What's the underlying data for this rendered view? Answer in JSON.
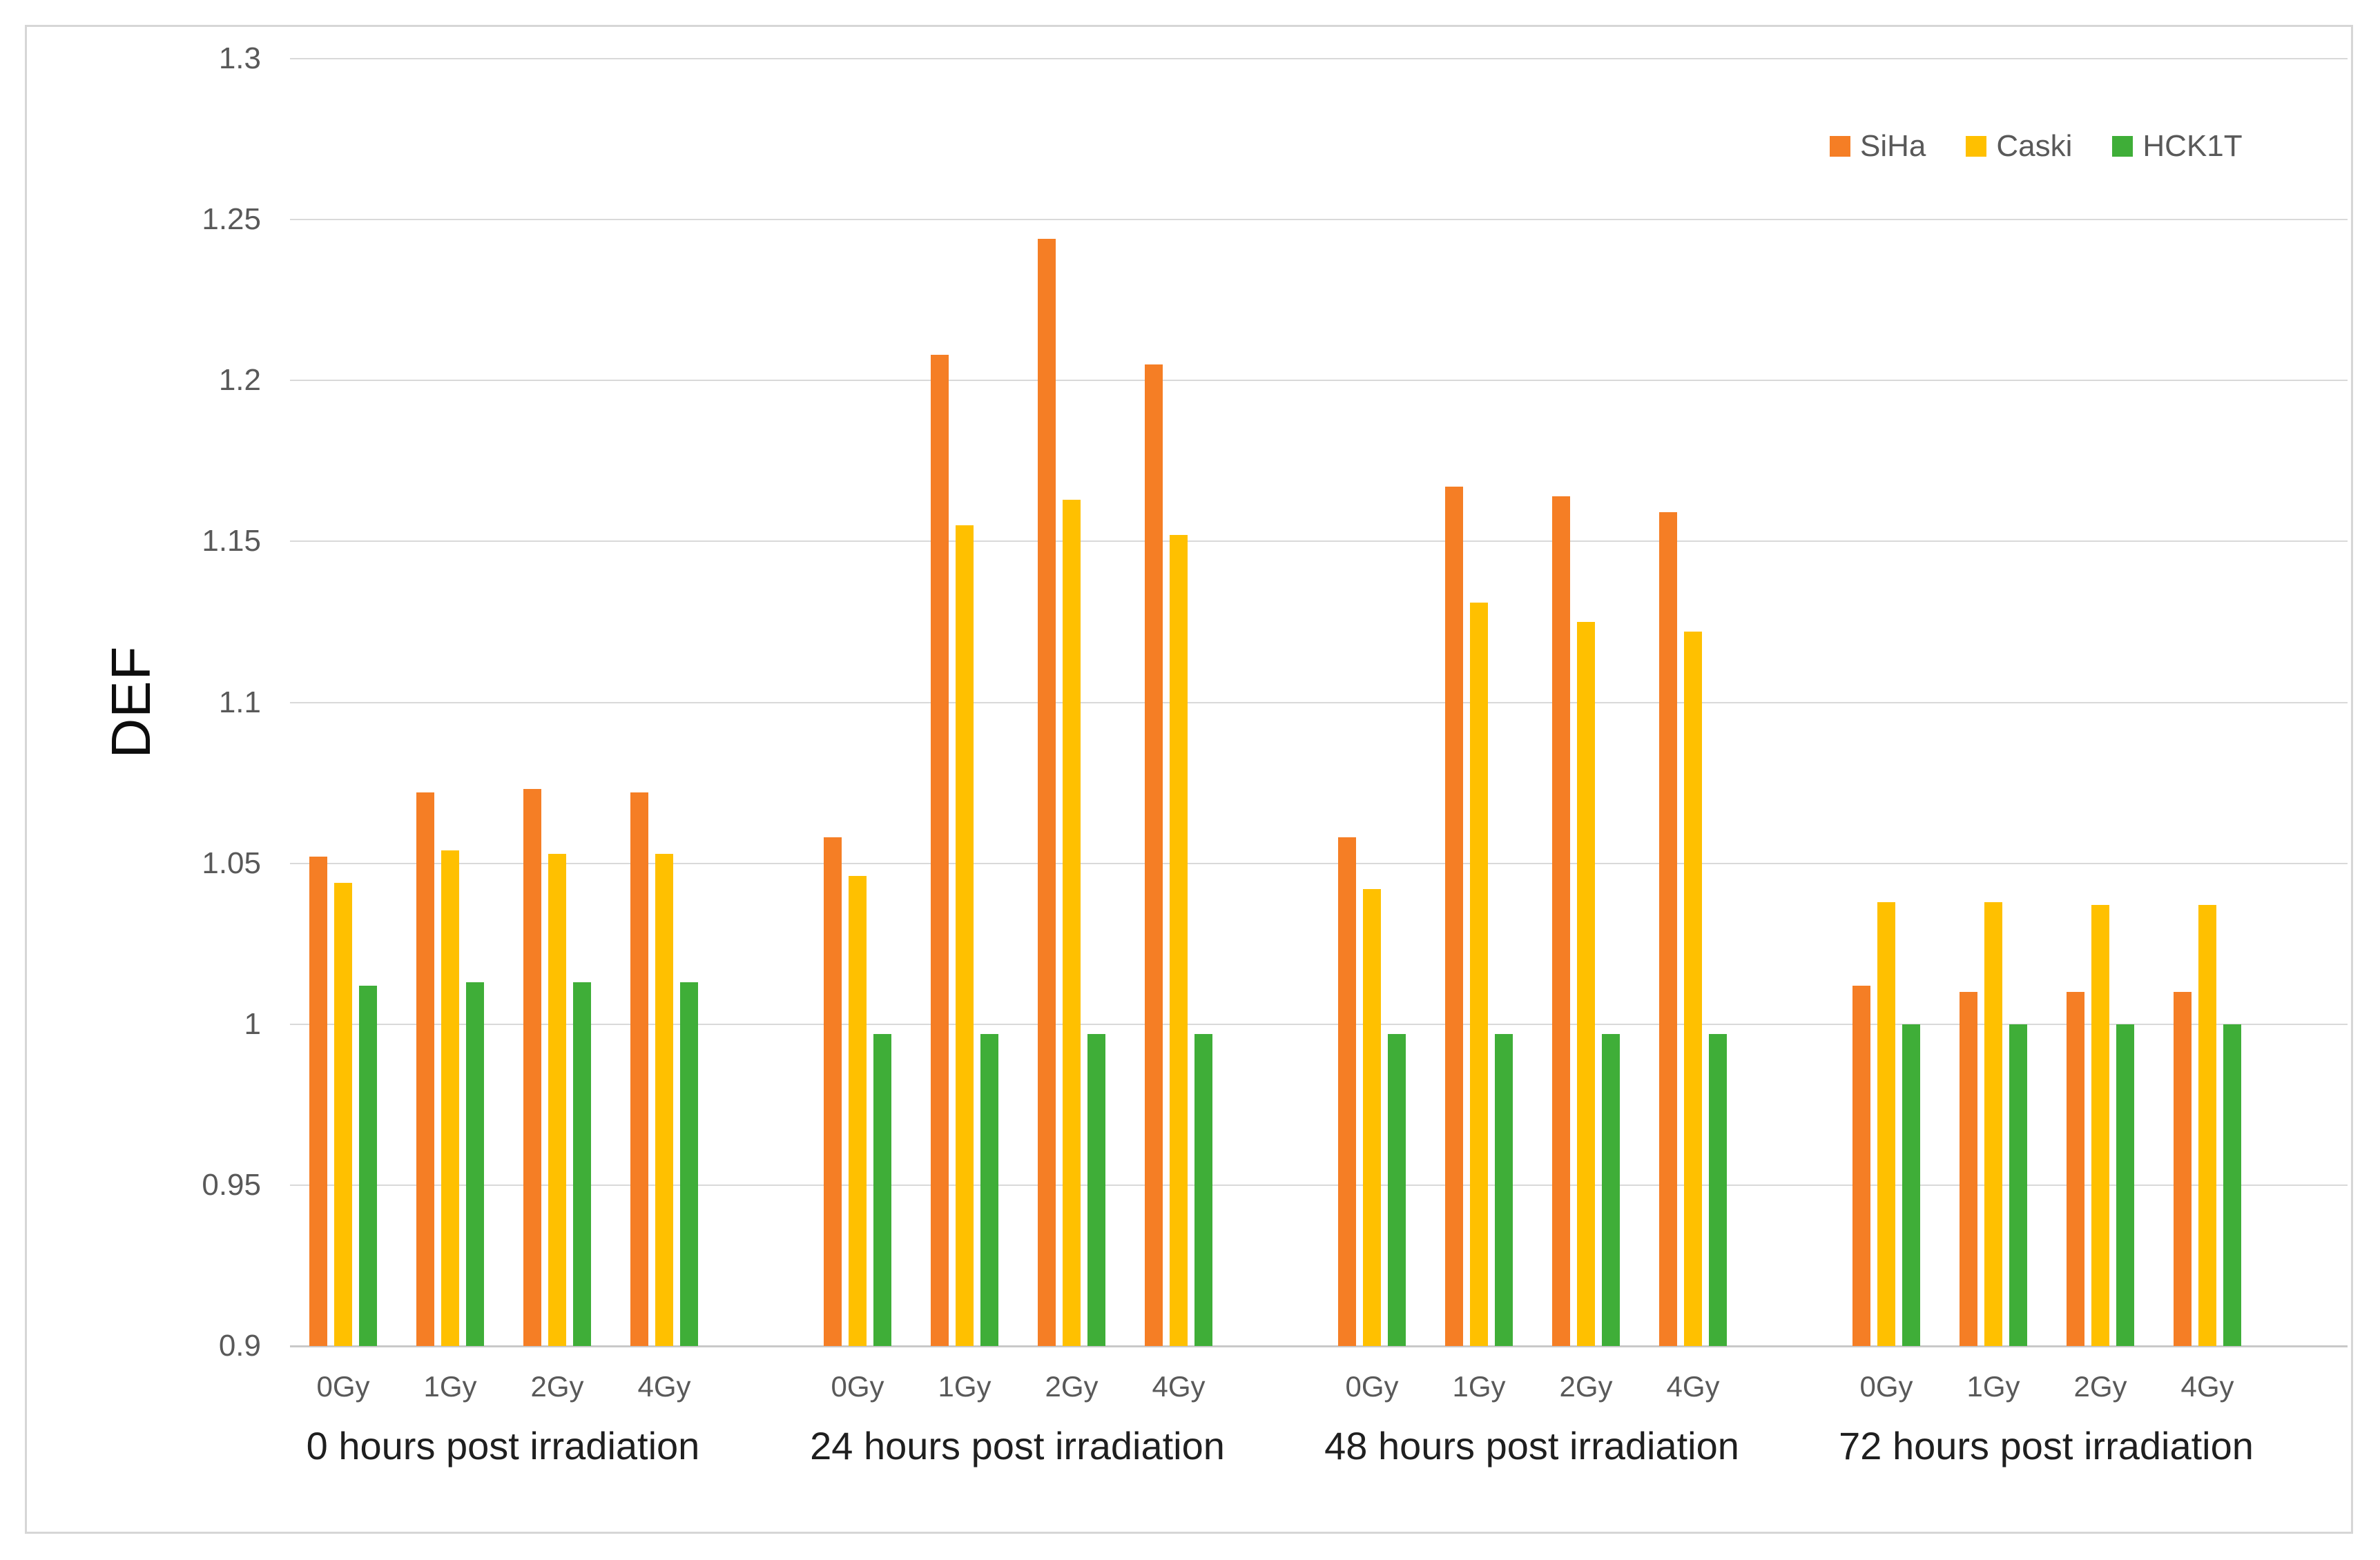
{
  "figure": {
    "background": "#ffffff",
    "border_color": "#d6d6d6",
    "gridline_color": "#d9d9d9"
  },
  "chart_data": {
    "type": "bar",
    "title": "",
    "xlabel": "",
    "ylabel": "DEF",
    "ylim": [
      0.9,
      1.3
    ],
    "grid": true,
    "legend_position": "top-right",
    "yticks": [
      {
        "value": 1.3,
        "label": "1.3"
      },
      {
        "value": 1.25,
        "label": "1.25"
      },
      {
        "value": 1.2,
        "label": "1.2"
      },
      {
        "value": 1.15,
        "label": "1.15"
      },
      {
        "value": 1.1,
        "label": "1.1"
      },
      {
        "value": 1.05,
        "label": "1.05"
      },
      {
        "value": 1.0,
        "label": "1"
      },
      {
        "value": 0.95,
        "label": "0.95"
      },
      {
        "value": 0.9,
        "label": "0.9"
      }
    ],
    "group_labels": [
      "0 hours post irradiation",
      "24 hours post irradiation",
      "48 hours post irradiation",
      "72 hours post irradiation"
    ],
    "dose_labels": [
      "0Gy",
      "1Gy",
      "2Gy",
      "4Gy"
    ],
    "series": [
      {
        "name": "SiHa",
        "color": "#F57E25",
        "values": [
          [
            1.052,
            1.072,
            1.073,
            1.072
          ],
          [
            1.058,
            1.208,
            1.244,
            1.205
          ],
          [
            1.058,
            1.167,
            1.164,
            1.159
          ],
          [
            1.012,
            1.01,
            1.01,
            1.01
          ]
        ]
      },
      {
        "name": "Caski",
        "color": "#FFC000",
        "values": [
          [
            1.044,
            1.054,
            1.053,
            1.053
          ],
          [
            1.046,
            1.155,
            1.163,
            1.152
          ],
          [
            1.042,
            1.131,
            1.125,
            1.122
          ],
          [
            1.038,
            1.038,
            1.037,
            1.037
          ]
        ]
      },
      {
        "name": "HCK1T",
        "color": "#3FAE38",
        "values": [
          [
            1.012,
            1.013,
            1.013,
            1.013
          ],
          [
            0.997,
            0.997,
            0.997,
            0.997
          ],
          [
            0.997,
            0.997,
            0.997,
            0.997
          ],
          [
            1.0,
            1.0,
            1.0,
            1.0
          ]
        ]
      }
    ]
  }
}
